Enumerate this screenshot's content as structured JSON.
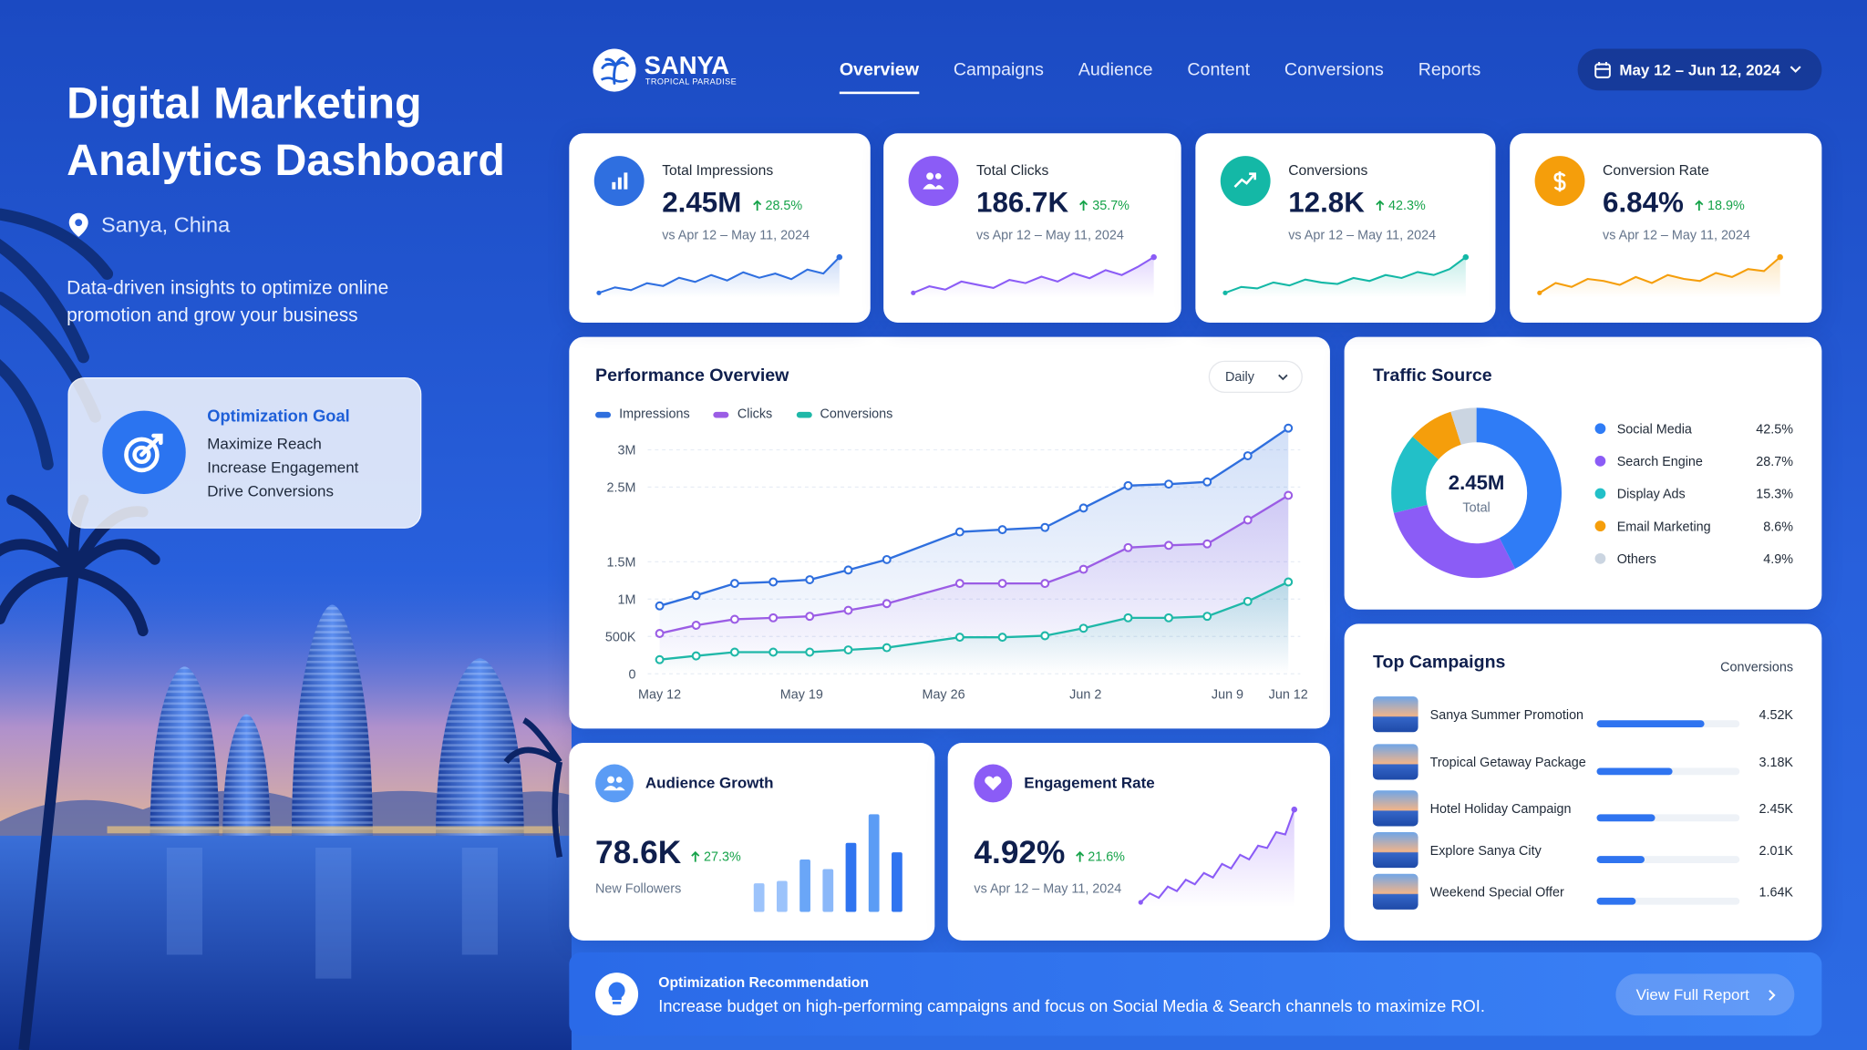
{
  "header": {
    "title": "Digital Marketing Analytics Dashboard",
    "location": "Sanya, China",
    "description": "Data-driven insights to optimize online promotion and grow your business"
  },
  "goal": {
    "title": "Optimization Goal",
    "items": [
      "Maximize Reach",
      "Increase Engagement",
      "Drive Conversions"
    ]
  },
  "brand": {
    "name": "SANYA",
    "tagline": "TROPICAL PARADISE"
  },
  "nav": {
    "items": [
      "Overview",
      "Campaigns",
      "Audience",
      "Content",
      "Conversions",
      "Reports"
    ],
    "active": 0
  },
  "date_range": "May 12 – Jun 12, 2024",
  "kpis": [
    {
      "label": "Total Impressions",
      "value": "2.45M",
      "change": "28.5%",
      "period": "vs Apr 12 – May 11, 2024",
      "color": "#2f6fe0",
      "trend": [
        10,
        14,
        12,
        17,
        15,
        21,
        18,
        23,
        19,
        25,
        21,
        24,
        20,
        27,
        24,
        36
      ]
    },
    {
      "label": "Total Clicks",
      "value": "186.7K",
      "change": "35.7%",
      "period": "vs Apr 12 – May 11, 2024",
      "color": "#8b5cf6",
      "trend": [
        8,
        12,
        10,
        15,
        13,
        11,
        16,
        14,
        18,
        15,
        20,
        17,
        22,
        19,
        24,
        30
      ]
    },
    {
      "label": "Conversions",
      "value": "12.8K",
      "change": "42.3%",
      "period": "vs Apr 12 – May 11, 2024",
      "color": "#14b8a6",
      "trend": [
        6,
        10,
        9,
        13,
        11,
        15,
        13,
        12,
        16,
        14,
        18,
        16,
        20,
        18,
        22,
        30
      ]
    },
    {
      "label": "Conversion Rate",
      "value": "6.84%",
      "change": "18.9%",
      "period": "vs Apr 12 – May 11, 2024",
      "color": "#f59e0b",
      "trend": [
        8,
        13,
        11,
        15,
        14,
        12,
        16,
        13,
        17,
        15,
        14,
        18,
        16,
        20,
        19,
        26
      ]
    }
  ],
  "performance": {
    "title": "Performance Overview",
    "period": "Daily",
    "xlim": [
      0,
      31
    ],
    "xticks": [
      {
        "value": 0,
        "label": "May 12"
      },
      {
        "value": 7,
        "label": "May 19"
      },
      {
        "value": 14,
        "label": "May 26"
      },
      {
        "value": 21,
        "label": "Jun 2"
      },
      {
        "value": 28,
        "label": "Jun 9"
      },
      {
        "value": 31,
        "label": "Jun 12"
      }
    ],
    "ylim": [
      0,
      3300000
    ],
    "yticks": [
      0,
      {
        "value": 500000,
        "label": "500K"
      },
      {
        "value": 1000000,
        "label": "1M"
      },
      {
        "value": 1500000,
        "label": "1.5M"
      },
      {
        "value": 2500000,
        "label": "2.5M"
      },
      {
        "value": 3000000,
        "label": "3M"
      }
    ],
    "x": [
      0,
      1.8,
      3.7,
      5.6,
      7.4,
      9.3,
      11.2,
      14.8,
      16.9,
      19,
      20.9,
      23.1,
      25.1,
      27,
      29,
      31
    ],
    "series": [
      {
        "name": "Impressions",
        "color": "#2f6fde",
        "values": [
          910000,
          1050000,
          1210000,
          1230000,
          1260000,
          1390000,
          1530000,
          1900000,
          1930000,
          1960000,
          2220000,
          2520000,
          2540000,
          2570000,
          2920000,
          3290000
        ]
      },
      {
        "name": "Clicks",
        "color": "#9b5de5",
        "values": [
          540000,
          650000,
          730000,
          750000,
          770000,
          850000,
          940000,
          1210000,
          1210000,
          1210000,
          1400000,
          1690000,
          1720000,
          1740000,
          2060000,
          2390000
        ]
      },
      {
        "name": "Conversions",
        "color": "#1fb8a8",
        "values": [
          190000,
          240000,
          290000,
          290000,
          290000,
          320000,
          350000,
          490000,
          490000,
          510000,
          610000,
          750000,
          750000,
          770000,
          970000,
          1230000
        ]
      }
    ]
  },
  "traffic": {
    "title": "Traffic Source",
    "type": "donut",
    "total": "2.45M",
    "total_label": "Total",
    "categories": [
      "Social Media",
      "Search Engine",
      "Display Ads",
      "Email Marketing",
      "Others"
    ],
    "values": [
      42.5,
      28.7,
      15.3,
      8.6,
      4.9
    ],
    "value_labels": [
      "42.5%",
      "28.7%",
      "15.3%",
      "8.6%",
      "4.9%"
    ],
    "colors": [
      "#2f7cf6",
      "#8b5cf6",
      "#22c0c8",
      "#f59e0b",
      "#cbd5e1"
    ]
  },
  "campaigns": {
    "title": "Top Campaigns",
    "column": "Conversions",
    "xlim": [
      0,
      6000
    ],
    "color": "#2f74f0",
    "names": [
      "Sanya Summer Promotion",
      "Tropical Getaway Package",
      "Hotel Holiday Campaign",
      "Explore Sanya City",
      "Weekend Special Offer"
    ],
    "values": [
      4520,
      3180,
      2450,
      2010,
      1640
    ],
    "value_labels": [
      "4.52K",
      "3.18K",
      "2.45K",
      "2.01K",
      "1.64K"
    ]
  },
  "audience": {
    "title": "Audience Growth",
    "value": "78.6K",
    "change": "27.3%",
    "caption": "New Followers",
    "bars": [
      24,
      26,
      44,
      36,
      58,
      82,
      50
    ],
    "colors": [
      "#9cc3fb",
      "#9cc3fb",
      "#6aa6f7",
      "#8bb8f9",
      "#2f74f0",
      "#5b9cf5",
      "#2f74f0"
    ]
  },
  "engagement": {
    "title": "Engagement Rate",
    "value": "4.92%",
    "change": "21.6%",
    "period": "vs Apr 12 – May 11, 2024",
    "color": "#8b5cf6",
    "trend": [
      10,
      18,
      14,
      24,
      20,
      30,
      26,
      36,
      32,
      44,
      40,
      52,
      48,
      60,
      58,
      72,
      70,
      92
    ]
  },
  "recommendation": {
    "title": "Optimization Recommendation",
    "text": "Increase budget on high-performing campaigns and focus on Social Media & Search channels to maximize ROI.",
    "button": "View Full Report"
  }
}
